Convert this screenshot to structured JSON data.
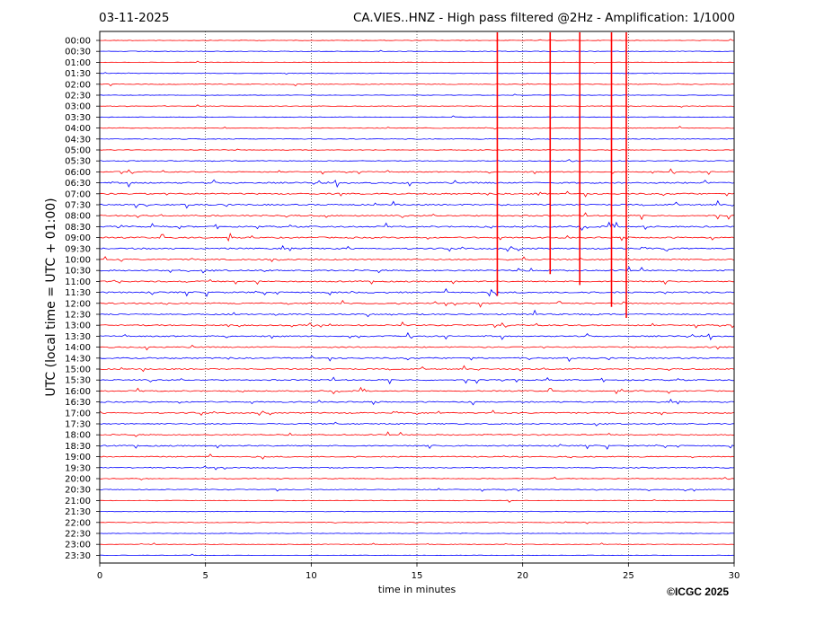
{
  "header": {
    "date": "03-11-2025",
    "title": "CA.VIES..HNZ - High pass filtered @2Hz - Amplification: 1/1000"
  },
  "footer": {
    "copyright": "©ICGC 2025"
  },
  "chart_data": {
    "type": "line",
    "title": "CA.VIES..HNZ - High pass filtered @2Hz - Amplification: 1/1000",
    "xlabel": "time in minutes",
    "ylabel": "UTC (local time = UTC + 01:00)",
    "xlim": [
      0,
      30
    ],
    "x_ticks": [
      "0",
      "5",
      "10",
      "15",
      "20",
      "25",
      "30"
    ],
    "vertical_gridlines_minutes": [
      5,
      10,
      15,
      20,
      25
    ],
    "rows": [
      "00:00",
      "00:30",
      "01:00",
      "01:30",
      "02:00",
      "02:30",
      "03:00",
      "03:30",
      "04:00",
      "04:30",
      "05:00",
      "05:30",
      "06:00",
      "06:30",
      "07:00",
      "07:30",
      "08:00",
      "08:30",
      "09:00",
      "09:30",
      "10:00",
      "10:30",
      "11:00",
      "11:30",
      "12:00",
      "12:30",
      "13:00",
      "13:30",
      "14:00",
      "14:30",
      "15:00",
      "15:30",
      "16:00",
      "16:30",
      "17:00",
      "17:30",
      "18:00",
      "18:30",
      "19:00",
      "19:30",
      "20:00",
      "20:30",
      "21:00",
      "21:30",
      "22:00",
      "22:30",
      "23:00",
      "23:30"
    ],
    "series_colors": [
      "#ff0000",
      "#0000ff"
    ],
    "activity_levels": [
      0.15,
      0.2,
      0.1,
      0.15,
      0.3,
      0.12,
      0.2,
      0.15,
      0.3,
      0.35,
      0.25,
      0.35,
      0.6,
      0.9,
      0.85,
      0.85,
      0.8,
      0.95,
      0.9,
      0.85,
      0.8,
      0.85,
      0.8,
      0.95,
      0.75,
      0.8,
      0.75,
      0.7,
      0.75,
      0.8,
      0.7,
      0.75,
      0.7,
      0.75,
      0.7,
      0.7,
      0.65,
      0.75,
      0.6,
      0.55,
      0.3,
      0.45,
      0.2,
      0.15,
      0.25,
      0.15,
      0.2,
      0.05
    ],
    "spikes": [
      {
        "minute": 18.8,
        "from": "00:00",
        "to": "11:30",
        "color": "#ff0000"
      },
      {
        "minute": 21.3,
        "from": "00:00",
        "to": "10:30",
        "color": "#ff0000"
      },
      {
        "minute": 22.7,
        "from": "00:00",
        "to": "11:00",
        "color": "#ff0000"
      },
      {
        "minute": 24.2,
        "from": "00:00",
        "to": "12:00",
        "color": "#ff0000"
      },
      {
        "minute": 24.9,
        "from": "00:00",
        "to": "12:30",
        "color": "#ff0000"
      }
    ]
  }
}
